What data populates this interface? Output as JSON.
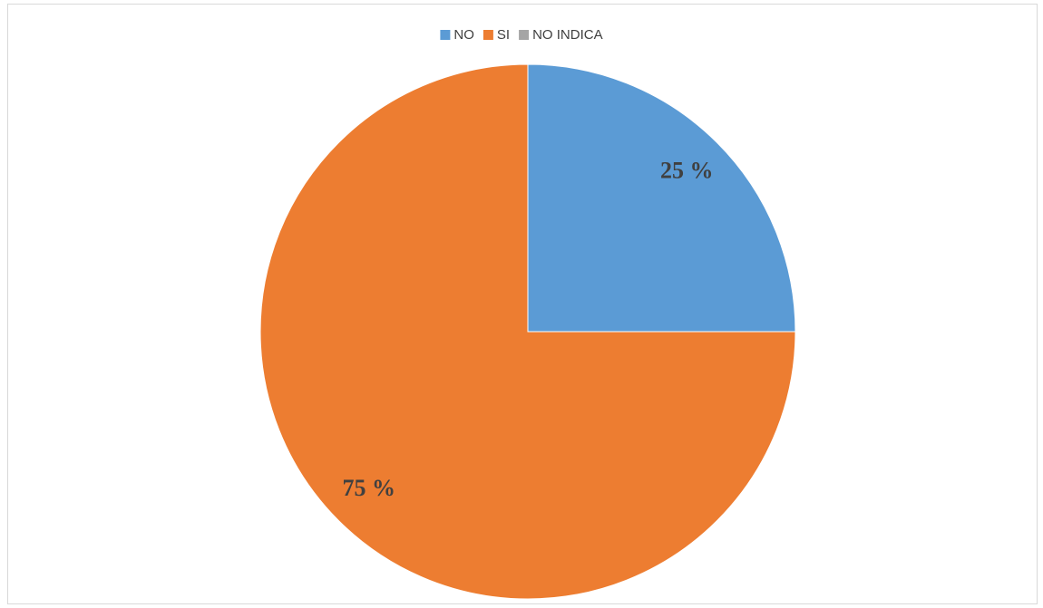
{
  "chart_data": {
    "type": "pie",
    "categories": [
      "NO",
      "SI",
      "NO INDICA"
    ],
    "values": [
      25,
      75,
      0
    ],
    "value_labels": [
      "25 %",
      "75 %",
      null
    ],
    "colors": [
      "#5b9bd5",
      "#ed7d31",
      "#a5a5a5"
    ],
    "legend": "top"
  }
}
